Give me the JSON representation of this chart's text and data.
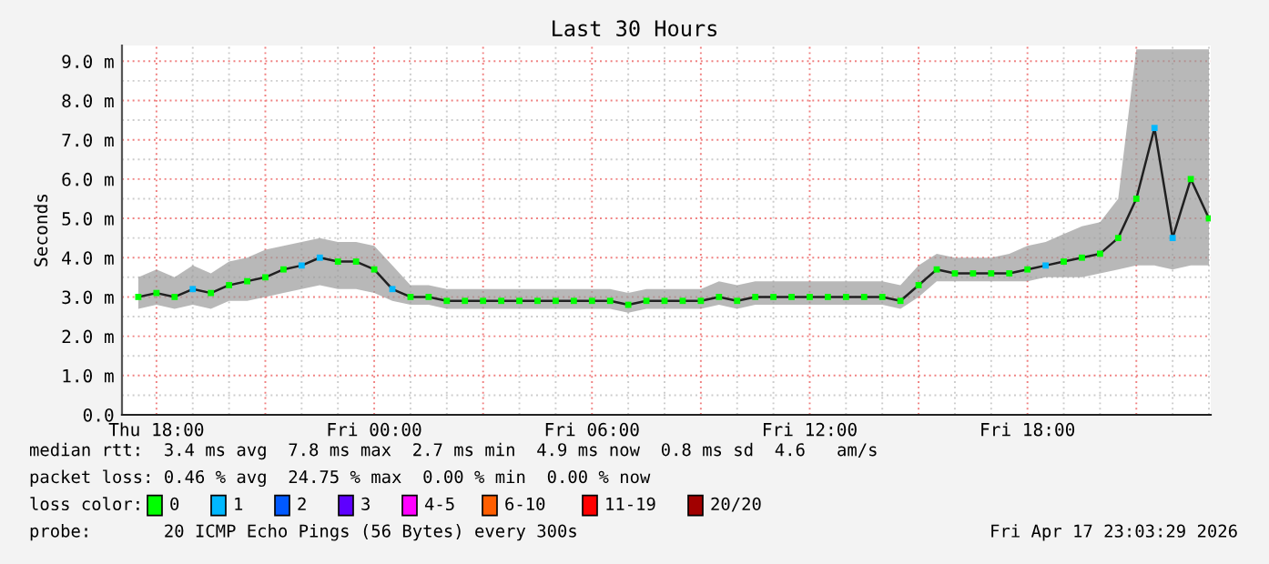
{
  "chart_data": {
    "type": "line",
    "title": "Last 30 Hours",
    "ylabel": "Seconds",
    "x": [
      "2026-04-16T17:30",
      "2026-04-16T18:00",
      "2026-04-16T18:30",
      "2026-04-16T19:00",
      "2026-04-16T19:30",
      "2026-04-16T20:00",
      "2026-04-16T20:30",
      "2026-04-16T21:00",
      "2026-04-16T21:30",
      "2026-04-16T22:00",
      "2026-04-16T22:30",
      "2026-04-16T23:00",
      "2026-04-16T23:30",
      "2026-04-17T00:00",
      "2026-04-17T00:30",
      "2026-04-17T01:00",
      "2026-04-17T01:30",
      "2026-04-17T02:00",
      "2026-04-17T02:30",
      "2026-04-17T03:00",
      "2026-04-17T03:30",
      "2026-04-17T04:00",
      "2026-04-17T04:30",
      "2026-04-17T05:00",
      "2026-04-17T05:30",
      "2026-04-17T06:00",
      "2026-04-17T06:30",
      "2026-04-17T07:00",
      "2026-04-17T07:30",
      "2026-04-17T08:00",
      "2026-04-17T08:30",
      "2026-04-17T09:00",
      "2026-04-17T09:30",
      "2026-04-17T10:00",
      "2026-04-17T10:30",
      "2026-04-17T11:00",
      "2026-04-17T11:30",
      "2026-04-17T12:00",
      "2026-04-17T12:30",
      "2026-04-17T13:00",
      "2026-04-17T13:30",
      "2026-04-17T14:00",
      "2026-04-17T14:30",
      "2026-04-17T15:00",
      "2026-04-17T15:30",
      "2026-04-17T16:00",
      "2026-04-17T16:30",
      "2026-04-17T17:00",
      "2026-04-17T17:30",
      "2026-04-17T18:00",
      "2026-04-17T18:30",
      "2026-04-17T19:00",
      "2026-04-17T19:30",
      "2026-04-17T20:00",
      "2026-04-17T20:30",
      "2026-04-17T21:00",
      "2026-04-17T21:30",
      "2026-04-17T22:00",
      "2026-04-17T22:30",
      "2026-04-17T23:00"
    ],
    "series": [
      {
        "color": "#202020",
        "marker": "square",
        "colors": [
          "#00ff00",
          "#00ff00",
          "#00ff00",
          "#00b8ff",
          "#00ff00",
          "#00ff00",
          "#00ff00",
          "#00ff00",
          "#00ff00",
          "#00b8ff",
          "#00b8ff",
          "#00ff00",
          "#00ff00",
          "#00ff00",
          "#00b8ff",
          "#00ff00",
          "#00ff00",
          "#00ff00",
          "#00ff00",
          "#00ff00",
          "#00ff00",
          "#00ff00",
          "#00ff00",
          "#00ff00",
          "#00ff00",
          "#00ff00",
          "#00ff00",
          "#00ff00",
          "#00ff00",
          "#00ff00",
          "#00ff00",
          "#00ff00",
          "#00ff00",
          "#00ff00",
          "#00ff00",
          "#00ff00",
          "#00ff00",
          "#00ff00",
          "#00ff00",
          "#00ff00",
          "#00ff00",
          "#00ff00",
          "#00ff00",
          "#00ff00",
          "#00ff00",
          "#00ff00",
          "#00ff00",
          "#00ff00",
          "#00ff00",
          "#00ff00",
          "#00b8ff",
          "#00ff00",
          "#00ff00",
          "#00ff00",
          "#00ff00",
          "#00ff00",
          "#00b8ff",
          "#00b8ff",
          "#00ff00",
          "#00ff00"
        ],
        "values": [
          3.0,
          3.1,
          3.0,
          3.2,
          3.1,
          3.3,
          3.4,
          3.5,
          3.7,
          3.8,
          4.0,
          3.9,
          3.9,
          3.7,
          3.2,
          3.0,
          3.0,
          2.9,
          2.9,
          2.9,
          2.9,
          2.9,
          2.9,
          2.9,
          2.9,
          2.9,
          2.9,
          2.8,
          2.9,
          2.9,
          2.9,
          2.9,
          3.0,
          2.9,
          3.0,
          3.0,
          3.0,
          3.0,
          3.0,
          3.0,
          3.0,
          3.0,
          2.9,
          3.3,
          3.7,
          3.6,
          3.6,
          3.6,
          3.6,
          3.7,
          3.8,
          3.9,
          4.0,
          4.1,
          4.5,
          5.5,
          7.3,
          4.5,
          6.0,
          5.0
        ],
        "lower": [
          2.7,
          2.8,
          2.7,
          2.8,
          2.7,
          2.9,
          2.9,
          3.0,
          3.1,
          3.2,
          3.3,
          3.2,
          3.2,
          3.1,
          2.9,
          2.8,
          2.8,
          2.7,
          2.7,
          2.7,
          2.7,
          2.7,
          2.7,
          2.7,
          2.7,
          2.7,
          2.7,
          2.6,
          2.7,
          2.7,
          2.7,
          2.7,
          2.8,
          2.7,
          2.8,
          2.8,
          2.8,
          2.8,
          2.8,
          2.8,
          2.8,
          2.8,
          2.7,
          3.0,
          3.4,
          3.4,
          3.4,
          3.4,
          3.4,
          3.4,
          3.5,
          3.5,
          3.5,
          3.6,
          3.7,
          3.8,
          3.8,
          3.7,
          3.8,
          3.8
        ],
        "upper": [
          3.5,
          3.7,
          3.5,
          3.8,
          3.6,
          3.9,
          4.0,
          4.2,
          4.3,
          4.4,
          4.5,
          4.4,
          4.4,
          4.3,
          3.8,
          3.3,
          3.3,
          3.2,
          3.2,
          3.2,
          3.2,
          3.2,
          3.2,
          3.2,
          3.2,
          3.2,
          3.2,
          3.1,
          3.2,
          3.2,
          3.2,
          3.2,
          3.4,
          3.3,
          3.4,
          3.4,
          3.4,
          3.4,
          3.4,
          3.4,
          3.4,
          3.4,
          3.3,
          3.8,
          4.1,
          4.0,
          4.0,
          4.0,
          4.1,
          4.3,
          4.4,
          4.6,
          4.8,
          4.9,
          5.5,
          9.3,
          9.3,
          9.3,
          9.3,
          9.3
        ]
      }
    ],
    "xlim": [
      "2026-04-16T17:03",
      "2026-04-17T23:03"
    ],
    "xticks": [
      {
        "value": "2026-04-16T18:00",
        "label": "Thu 18:00"
      },
      {
        "value": "2026-04-17T00:00",
        "label": "Fri 00:00"
      },
      {
        "value": "2026-04-17T06:00",
        "label": "Fri 06:00"
      },
      {
        "value": "2026-04-17T12:00",
        "label": "Fri 12:00"
      },
      {
        "value": "2026-04-17T18:00",
        "label": "Fri 18:00"
      }
    ],
    "ylim": [
      0,
      9.4
    ],
    "yticks": [
      {
        "value": 0,
        "label": "0.0"
      },
      {
        "value": 1,
        "label": "1.0 m"
      },
      {
        "value": 2,
        "label": "2.0 m"
      },
      {
        "value": 3,
        "label": "3.0 m"
      },
      {
        "value": 4,
        "label": "4.0 m"
      },
      {
        "value": 5,
        "label": "5.0 m"
      },
      {
        "value": 6,
        "label": "6.0 m"
      },
      {
        "value": 7,
        "label": "7.0 m"
      },
      {
        "value": 8,
        "label": "8.0 m"
      },
      {
        "value": 9,
        "label": "9.0 m"
      }
    ],
    "grid": true,
    "annotations": [
      "median rtt:  3.4 ms avg  7.8 ms max  2.7 ms min  4.9 ms now  0.8 ms sd  4.6   am/s",
      "packet loss: 0.46 % avg  24.75 % max  0.00 % min  0.00 % now",
      "loss color:",
      "0",
      "1",
      "2",
      "3",
      "4-5",
      "6-10",
      "11-19",
      "20/20",
      "probe:       20 ICMP Echo Pings (56 Bytes) every 300s",
      "Fri Apr 17 23:03:29 2026"
    ]
  }
}
